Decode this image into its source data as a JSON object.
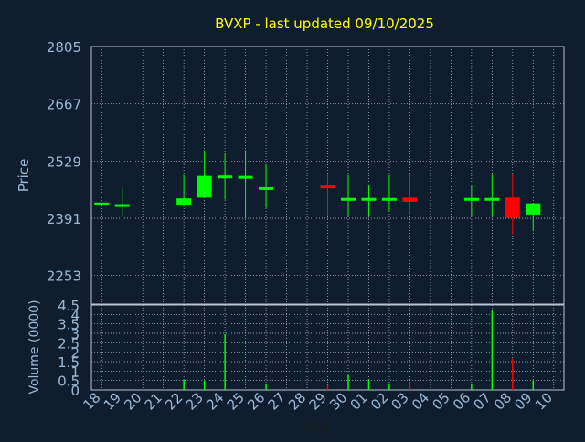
{
  "chart_data": [
    {
      "type": "candlestick",
      "title": "BVXP - last updated 09/10/2025",
      "ylabel": "Price",
      "xlabel": "Day",
      "ylim": [
        2184,
        2805
      ],
      "yticks": [
        2253,
        2391,
        2529,
        2667,
        2805
      ],
      "grid": true,
      "colors": {
        "up": "#00ff00",
        "down": "#ff0000",
        "title": "#ffff00",
        "text": "#9ab8d6",
        "background": "#0f1e2f",
        "grid": "#b8c4d0"
      },
      "x_ticks": [
        "18",
        "19",
        "20",
        "21",
        "22",
        "23",
        "24",
        "25",
        "26",
        "27",
        "28",
        "29",
        "30",
        "01",
        "02",
        "03",
        "04",
        "05",
        "06",
        "07",
        "08",
        "09",
        "10"
      ],
      "candles": [
        {
          "day": "18",
          "open": 2429,
          "high": 2429,
          "low": 2429,
          "close": 2429
        },
        {
          "day": "19",
          "open": 2425,
          "high": 2465,
          "low": 2396,
          "close": 2425
        },
        {
          "day": "22",
          "open": 2424,
          "high": 2495,
          "low": 2419,
          "close": 2439
        },
        {
          "day": "23",
          "open": 2441,
          "high": 2555,
          "low": 2441,
          "close": 2493
        },
        {
          "day": "24",
          "open": 2494,
          "high": 2548,
          "low": 2436,
          "close": 2494
        },
        {
          "day": "25",
          "open": 2493,
          "high": 2555,
          "low": 2391,
          "close": 2493
        },
        {
          "day": "26",
          "open": 2466,
          "high": 2520,
          "low": 2416,
          "close": 2466
        },
        {
          "day": "29",
          "open": 2470,
          "high": 2497,
          "low": 2397,
          "close": 2464
        },
        {
          "day": "30",
          "open": 2440,
          "high": 2495,
          "low": 2397,
          "close": 2440
        },
        {
          "day": "01",
          "open": 2440,
          "high": 2470,
          "low": 2395,
          "close": 2440
        },
        {
          "day": "02",
          "open": 2440,
          "high": 2495,
          "low": 2409,
          "close": 2440
        },
        {
          "day": "03",
          "open": 2441,
          "high": 2497,
          "low": 2400,
          "close": 2431
        },
        {
          "day": "06",
          "open": 2440,
          "high": 2470,
          "low": 2397,
          "close": 2440
        },
        {
          "day": "07",
          "open": 2440,
          "high": 2497,
          "low": 2397,
          "close": 2440
        },
        {
          "day": "08",
          "open": 2441,
          "high": 2497,
          "low": 2352,
          "close": 2392
        },
        {
          "day": "09",
          "open": 2400,
          "high": 2425,
          "low": 2360,
          "close": 2427
        }
      ]
    },
    {
      "type": "bar",
      "ylabel": "Volume (0000)",
      "xlabel": "Day",
      "ylim": [
        0,
        4.5
      ],
      "yticks": [
        "0",
        "0.5",
        "1",
        "1.5",
        "2",
        "2.5",
        "3",
        "3.5",
        "4",
        "4.5"
      ],
      "grid": true,
      "categories": [
        "22",
        "23",
        "24",
        "26",
        "29",
        "30",
        "01",
        "02",
        "03",
        "06",
        "07",
        "08",
        "09"
      ],
      "values": [
        0.55,
        0.5,
        2.95,
        0.3,
        0.25,
        0.8,
        0.55,
        0.35,
        0.45,
        0.3,
        4.2,
        1.65,
        0.5
      ],
      "bar_colors": [
        "up",
        "up",
        "up",
        "up",
        "down",
        "up",
        "up",
        "up",
        "down",
        "up",
        "up",
        "down",
        "up"
      ]
    }
  ]
}
